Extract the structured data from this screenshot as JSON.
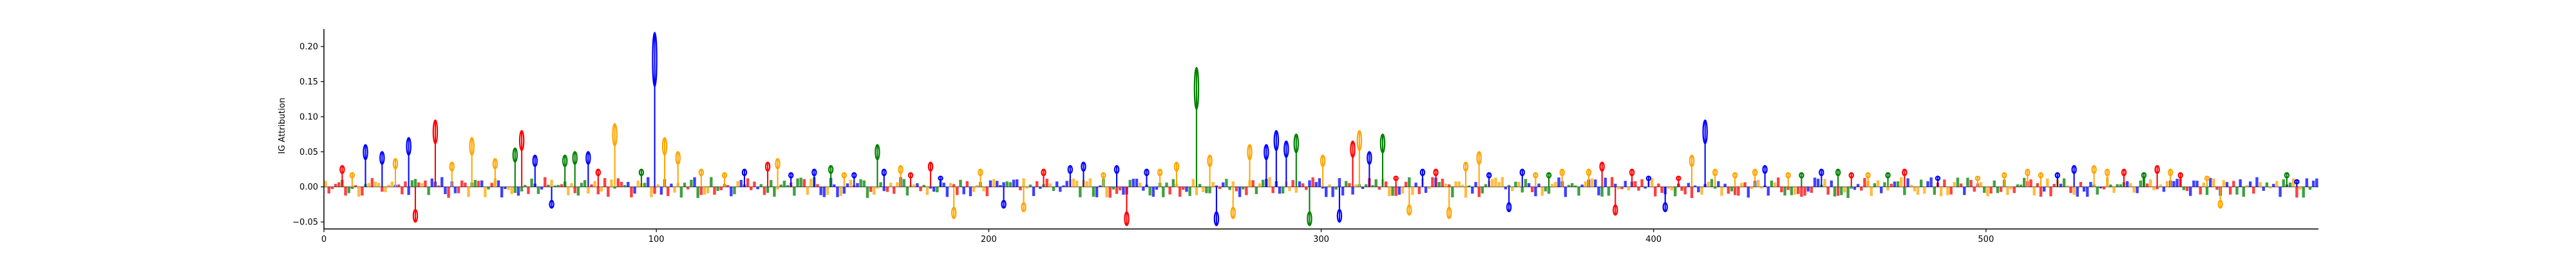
{
  "chart_data": {
    "type": "sequence-logo",
    "title": "",
    "xlabel": "",
    "ylabel": "IG Attribution",
    "xlim": [
      0,
      600
    ],
    "ylim": [
      -0.06,
      0.225
    ],
    "x_ticks": [
      0,
      100,
      200,
      300,
      400,
      500
    ],
    "y_ticks": [
      -0.05,
      0.0,
      0.05,
      0.1,
      0.15,
      0.2
    ],
    "x_tick_labels": [
      "0",
      "100",
      "200",
      "300",
      "400",
      "500"
    ],
    "y_tick_labels": [
      "−0.05",
      "0.00",
      "0.05",
      "0.10",
      "0.15",
      "0.20"
    ],
    "grid": false,
    "letter_colors": {
      "A": "#008000",
      "C": "#0000ff",
      "G": "#ffa500",
      "T": "#ff0000"
    },
    "peaks": [
      {
        "x": 5,
        "base": "T",
        "value": 0.03
      },
      {
        "x": 8,
        "base": "G",
        "value": 0.02
      },
      {
        "x": 12,
        "base": "C",
        "value": 0.06
      },
      {
        "x": 17,
        "base": "C",
        "value": 0.05
      },
      {
        "x": 21,
        "base": "G",
        "value": 0.04
      },
      {
        "x": 25,
        "base": "C",
        "value": 0.07
      },
      {
        "x": 27,
        "base": "T",
        "value": -0.05
      },
      {
        "x": 33,
        "base": "T",
        "value": 0.095
      },
      {
        "x": 38,
        "base": "G",
        "value": 0.035
      },
      {
        "x": 44,
        "base": "G",
        "value": 0.07
      },
      {
        "x": 51,
        "base": "G",
        "value": 0.04
      },
      {
        "x": 57,
        "base": "A",
        "value": 0.055
      },
      {
        "x": 59,
        "base": "T",
        "value": 0.08
      },
      {
        "x": 63,
        "base": "C",
        "value": 0.045
      },
      {
        "x": 68,
        "base": "C",
        "value": -0.03
      },
      {
        "x": 72,
        "base": "A",
        "value": 0.045
      },
      {
        "x": 75,
        "base": "A",
        "value": 0.05
      },
      {
        "x": 79,
        "base": "C",
        "value": 0.05
      },
      {
        "x": 82,
        "base": "T",
        "value": 0.025
      },
      {
        "x": 87,
        "base": "G",
        "value": 0.09
      },
      {
        "x": 95,
        "base": "A",
        "value": 0.025
      },
      {
        "x": 99,
        "base": "C",
        "value": 0.22
      },
      {
        "x": 102,
        "base": "G",
        "value": 0.07
      },
      {
        "x": 106,
        "base": "G",
        "value": 0.05
      },
      {
        "x": 113,
        "base": "G",
        "value": 0.025
      },
      {
        "x": 120,
        "base": "G",
        "value": 0.02
      },
      {
        "x": 126,
        "base": "C",
        "value": 0.025
      },
      {
        "x": 133,
        "base": "T",
        "value": 0.035
      },
      {
        "x": 136,
        "base": "G",
        "value": 0.04
      },
      {
        "x": 140,
        "base": "C",
        "value": 0.02
      },
      {
        "x": 147,
        "base": "C",
        "value": 0.025
      },
      {
        "x": 152,
        "base": "A",
        "value": 0.03
      },
      {
        "x": 156,
        "base": "G",
        "value": 0.02
      },
      {
        "x": 159,
        "base": "C",
        "value": 0.02
      },
      {
        "x": 166,
        "base": "A",
        "value": 0.06
      },
      {
        "x": 168,
        "base": "C",
        "value": 0.025
      },
      {
        "x": 173,
        "base": "G",
        "value": 0.03
      },
      {
        "x": 176,
        "base": "T",
        "value": 0.02
      },
      {
        "x": 182,
        "base": "T",
        "value": 0.035
      },
      {
        "x": 185,
        "base": "C",
        "value": 0.015
      },
      {
        "x": 189,
        "base": "G",
        "value": -0.045
      },
      {
        "x": 197,
        "base": "G",
        "value": 0.025
      },
      {
        "x": 204,
        "base": "C",
        "value": -0.03
      },
      {
        "x": 210,
        "base": "G",
        "value": -0.035
      },
      {
        "x": 216,
        "base": "T",
        "value": 0.025
      },
      {
        "x": 224,
        "base": "C",
        "value": 0.03
      },
      {
        "x": 228,
        "base": "C",
        "value": 0.035
      },
      {
        "x": 234,
        "base": "G",
        "value": 0.02
      },
      {
        "x": 238,
        "base": "C",
        "value": 0.03
      },
      {
        "x": 241,
        "base": "T",
        "value": -0.055
      },
      {
        "x": 247,
        "base": "C",
        "value": 0.025
      },
      {
        "x": 251,
        "base": "G",
        "value": 0.025
      },
      {
        "x": 256,
        "base": "G",
        "value": 0.035
      },
      {
        "x": 262,
        "base": "A",
        "value": 0.17
      },
      {
        "x": 266,
        "base": "G",
        "value": 0.045
      },
      {
        "x": 268,
        "base": "C",
        "value": -0.055
      },
      {
        "x": 273,
        "base": "G",
        "value": -0.045
      },
      {
        "x": 278,
        "base": "G",
        "value": 0.06
      },
      {
        "x": 283,
        "base": "C",
        "value": 0.06
      },
      {
        "x": 286,
        "base": "C",
        "value": 0.08
      },
      {
        "x": 289,
        "base": "C",
        "value": 0.065
      },
      {
        "x": 292,
        "base": "A",
        "value": 0.075
      },
      {
        "x": 296,
        "base": "A",
        "value": -0.055
      },
      {
        "x": 300,
        "base": "G",
        "value": 0.045
      },
      {
        "x": 305,
        "base": "C",
        "value": -0.05
      },
      {
        "x": 309,
        "base": "T",
        "value": 0.065
      },
      {
        "x": 311,
        "base": "G",
        "value": 0.08
      },
      {
        "x": 314,
        "base": "C",
        "value": 0.05
      },
      {
        "x": 318,
        "base": "A",
        "value": 0.075
      },
      {
        "x": 322,
        "base": "T",
        "value": 0.015
      },
      {
        "x": 326,
        "base": "G",
        "value": -0.04
      },
      {
        "x": 330,
        "base": "C",
        "value": 0.025
      },
      {
        "x": 334,
        "base": "T",
        "value": 0.025
      },
      {
        "x": 338,
        "base": "G",
        "value": -0.045
      },
      {
        "x": 343,
        "base": "G",
        "value": 0.035
      },
      {
        "x": 347,
        "base": "G",
        "value": 0.05
      },
      {
        "x": 350,
        "base": "C",
        "value": 0.02
      },
      {
        "x": 356,
        "base": "C",
        "value": -0.035
      },
      {
        "x": 360,
        "base": "C",
        "value": 0.025
      },
      {
        "x": 364,
        "base": "G",
        "value": 0.02
      },
      {
        "x": 368,
        "base": "A",
        "value": 0.02
      },
      {
        "x": 372,
        "base": "G",
        "value": 0.025
      },
      {
        "x": 380,
        "base": "G",
        "value": 0.025
      },
      {
        "x": 384,
        "base": "T",
        "value": 0.035
      },
      {
        "x": 388,
        "base": "T",
        "value": -0.04
      },
      {
        "x": 393,
        "base": "T",
        "value": 0.025
      },
      {
        "x": 398,
        "base": "C",
        "value": 0.015
      },
      {
        "x": 403,
        "base": "C",
        "value": -0.035
      },
      {
        "x": 407,
        "base": "T",
        "value": 0.015
      },
      {
        "x": 411,
        "base": "G",
        "value": 0.045
      },
      {
        "x": 415,
        "base": "C",
        "value": 0.095
      },
      {
        "x": 418,
        "base": "G",
        "value": 0.025
      },
      {
        "x": 424,
        "base": "G",
        "value": 0.02
      },
      {
        "x": 430,
        "base": "G",
        "value": 0.025
      },
      {
        "x": 433,
        "base": "C",
        "value": 0.03
      },
      {
        "x": 440,
        "base": "G",
        "value": 0.02
      },
      {
        "x": 444,
        "base": "A",
        "value": 0.02
      },
      {
        "x": 450,
        "base": "C",
        "value": 0.025
      },
      {
        "x": 455,
        "base": "A",
        "value": 0.025
      },
      {
        "x": 459,
        "base": "T",
        "value": 0.02
      },
      {
        "x": 464,
        "base": "G",
        "value": 0.02
      },
      {
        "x": 470,
        "base": "A",
        "value": 0.02
      },
      {
        "x": 475,
        "base": "T",
        "value": 0.025
      },
      {
        "x": 485,
        "base": "C",
        "value": 0.015
      },
      {
        "x": 497,
        "base": "G",
        "value": 0.015
      },
      {
        "x": 505,
        "base": "G",
        "value": 0.02
      },
      {
        "x": 512,
        "base": "G",
        "value": 0.025
      },
      {
        "x": 516,
        "base": "G",
        "value": 0.02
      },
      {
        "x": 521,
        "base": "C",
        "value": 0.02
      },
      {
        "x": 526,
        "base": "C",
        "value": 0.03
      },
      {
        "x": 532,
        "base": "G",
        "value": 0.03
      },
      {
        "x": 536,
        "base": "G",
        "value": 0.025
      },
      {
        "x": 541,
        "base": "T",
        "value": 0.025
      },
      {
        "x": 547,
        "base": "A",
        "value": 0.02
      },
      {
        "x": 551,
        "base": "T",
        "value": 0.03
      },
      {
        "x": 555,
        "base": "G",
        "value": 0.025
      },
      {
        "x": 558,
        "base": "T",
        "value": 0.02
      },
      {
        "x": 566,
        "base": "G",
        "value": 0.015
      },
      {
        "x": 570,
        "base": "G",
        "value": -0.03
      },
      {
        "x": 590,
        "base": "A",
        "value": 0.02
      },
      {
        "x": 593,
        "base": "C",
        "value": 0.01
      }
    ]
  }
}
